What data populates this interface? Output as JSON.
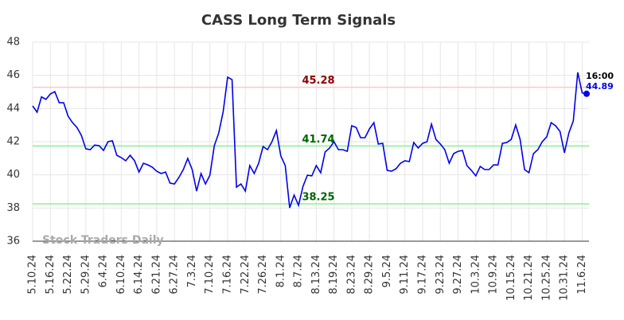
{
  "chart_data": {
    "type": "line",
    "title": "CASS Long Term Signals",
    "watermark": "Stock Traders Daily",
    "last_time": "16:00",
    "color": "#0000ee",
    "categories": [
      "5.10.24",
      null,
      null,
      null,
      "5.16.24",
      null,
      null,
      null,
      "5.22.24",
      null,
      null,
      null,
      "5.29.24",
      null,
      null,
      null,
      "6.4.24",
      null,
      null,
      null,
      "6.10.24",
      null,
      null,
      null,
      "6.14.24",
      null,
      null,
      null,
      "6.21.24",
      null,
      null,
      null,
      "6.27.24",
      null,
      null,
      null,
      "7.3.24",
      null,
      null,
      null,
      "7.10.24",
      null,
      null,
      null,
      "7.16.24",
      null,
      null,
      null,
      "7.22.24",
      null,
      null,
      null,
      "7.26.24",
      null,
      null,
      null,
      "8.1.24",
      null,
      null,
      null,
      "8.7.24",
      null,
      null,
      null,
      "8.13.24",
      null,
      null,
      null,
      "8.19.24",
      null,
      null,
      null,
      "8.23.24",
      null,
      null,
      null,
      "8.29.24",
      null,
      null,
      null,
      "9.5.24",
      null,
      null,
      null,
      "9.11.24",
      null,
      null,
      null,
      "9.17.24",
      null,
      null,
      null,
      "9.23.24",
      null,
      null,
      null,
      "9.27.24",
      null,
      null,
      null,
      "10.3.24",
      null,
      null,
      null,
      "10.9.24",
      null,
      null,
      null,
      "10.15.24",
      null,
      null,
      null,
      "10.21.24",
      null,
      null,
      null,
      "10.25.24",
      null,
      null,
      null,
      "10.31.24",
      null,
      null,
      null,
      "11.6.24",
      null
    ],
    "values": [
      44.16,
      43.78,
      44.7,
      44.55,
      44.88,
      45.02,
      44.35,
      44.35,
      43.54,
      43.15,
      42.86,
      42.38,
      41.57,
      41.52,
      41.8,
      41.76,
      41.47,
      42.0,
      42.05,
      41.18,
      41.04,
      40.85,
      41.18,
      40.85,
      40.17,
      40.7,
      40.6,
      40.46,
      40.22,
      40.08,
      40.17,
      39.5,
      39.45,
      39.84,
      40.32,
      40.99,
      40.32,
      39.02,
      40.08,
      39.45,
      39.98,
      41.76,
      42.53,
      43.82,
      45.89,
      45.74,
      39.26,
      39.45,
      39.02,
      40.56,
      40.08,
      40.7,
      41.71,
      41.52,
      42.0,
      42.67,
      41.14,
      40.56,
      38.01,
      38.78,
      38.16,
      39.3,
      39.98,
      39.94,
      40.56,
      40.13,
      41.38,
      41.62,
      42.0,
      41.52,
      41.52,
      41.42,
      42.96,
      42.86,
      42.24,
      42.24,
      42.77,
      43.15,
      41.86,
      41.9,
      40.27,
      40.22,
      40.37,
      40.7,
      40.85,
      40.8,
      41.95,
      41.62,
      41.9,
      42.0,
      43.06,
      42.14,
      41.86,
      41.52,
      40.7,
      41.28,
      41.42,
      41.47,
      40.56,
      40.27,
      39.94,
      40.51,
      40.32,
      40.32,
      40.6,
      40.6,
      41.9,
      41.95,
      42.14,
      43.01,
      42.14,
      40.32,
      40.13,
      41.28,
      41.52,
      42.0,
      42.29,
      43.15,
      42.96,
      42.62,
      41.33,
      42.53,
      43.25,
      46.18,
      44.95,
      44.89
    ],
    "reference_lines": [
      {
        "value": 45.28,
        "line_color": "#ffc8c8",
        "text_color": "#8b0000"
      },
      {
        "value": 41.74,
        "line_color": "#90ee90",
        "text_color": "#006400"
      },
      {
        "value": 38.25,
        "line_color": "#90ee90",
        "text_color": "#006400"
      }
    ],
    "ylim": [
      36,
      48
    ],
    "yticks": [
      36,
      38,
      40,
      42,
      44,
      46,
      48
    ],
    "grid": true
  }
}
